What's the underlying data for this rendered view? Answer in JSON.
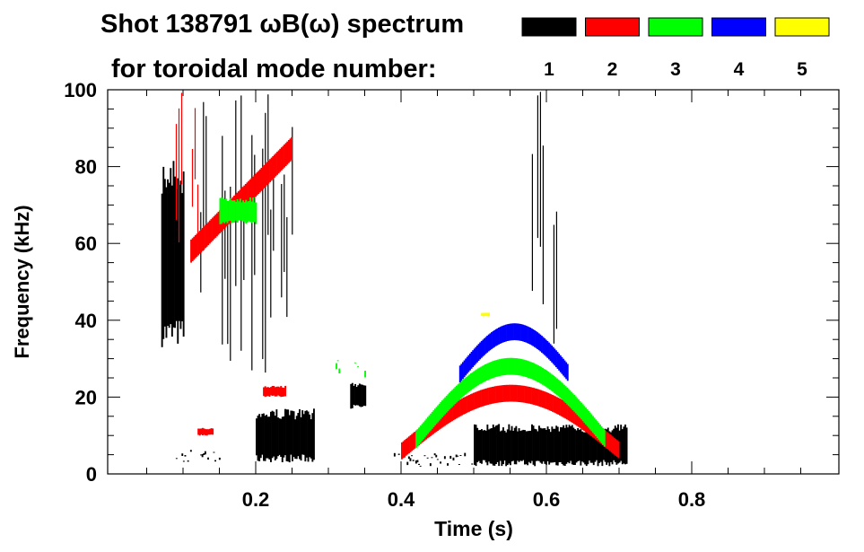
{
  "chart_data": {
    "type": "heatmap",
    "title": "Shot 138791 ωB(ω) spectrum",
    "subtitle": "for toroidal mode number:",
    "xlabel": "Time (s)",
    "ylabel": "Frequency (kHz)",
    "xlim": [
      0,
      1.0
    ],
    "ylim": [
      0,
      100
    ],
    "xticks": [
      0.2,
      0.4,
      0.6,
      0.8
    ],
    "xtick_labels": [
      "0.2",
      "0.4",
      "0.6",
      "0.8"
    ],
    "yticks": [
      0,
      20,
      40,
      60,
      80,
      100
    ],
    "ytick_labels": [
      "0",
      "20",
      "40",
      "60",
      "80",
      "100"
    ],
    "legend_placement": "top-right",
    "legend": [
      {
        "label": "1",
        "color": "#000000"
      },
      {
        "label": "2",
        "color": "#ff0000"
      },
      {
        "label": "3",
        "color": "#00ff00"
      },
      {
        "label": "4",
        "color": "#0000ff"
      },
      {
        "label": "5",
        "color": "#ffff00"
      }
    ],
    "series": [
      {
        "name": "1",
        "color": "#000000",
        "patches": [
          {
            "t": [
              0.07,
              0.1
            ],
            "f": [
              33,
              82
            ],
            "style": "blob"
          },
          {
            "t": [
              0.09,
              0.15
            ],
            "f": [
              3,
              6
            ],
            "style": "scatter"
          },
          {
            "t": [
              0.12,
              0.25
            ],
            "f": [
              25,
              100
            ],
            "style": "streaks"
          },
          {
            "t": [
              0.2,
              0.28
            ],
            "f": [
              3,
              17
            ],
            "style": "blob"
          },
          {
            "t": [
              0.33,
              0.35
            ],
            "f": [
              17,
              24
            ],
            "style": "blob"
          },
          {
            "t": [
              0.39,
              0.5
            ],
            "f": [
              2,
              5
            ],
            "style": "scatter"
          },
          {
            "t": [
              0.5,
              0.71
            ],
            "f": [
              2,
              13
            ],
            "style": "blob"
          },
          {
            "t": [
              0.58,
              0.62
            ],
            "f": [
              30,
              100
            ],
            "style": "streaks"
          }
        ]
      },
      {
        "name": "2",
        "color": "#ff0000",
        "patches": [
          {
            "t": [
              0.09,
              0.12
            ],
            "f": [
              60,
              100
            ],
            "style": "streaks"
          },
          {
            "t": [
              0.11,
              0.25
            ],
            "f": [
              58,
              85
            ],
            "style": "rising"
          },
          {
            "t": [
              0.21,
              0.24
            ],
            "f": [
              20,
              23
            ],
            "style": "blob"
          },
          {
            "t": [
              0.12,
              0.14
            ],
            "f": [
              10,
              12
            ],
            "style": "blob"
          },
          {
            "t": [
              0.4,
              0.7
            ],
            "f": [
              6,
              21
            ],
            "style": "arch"
          }
        ]
      },
      {
        "name": "3",
        "color": "#00ff00",
        "patches": [
          {
            "t": [
              0.15,
              0.2
            ],
            "f": [
              65,
              72
            ],
            "style": "blob"
          },
          {
            "t": [
              0.31,
              0.35
            ],
            "f": [
              24,
              30
            ],
            "style": "scatter"
          },
          {
            "t": [
              0.42,
              0.68
            ],
            "f": [
              9,
              28
            ],
            "style": "arch"
          }
        ]
      },
      {
        "name": "4",
        "color": "#0000ff",
        "patches": [
          {
            "t": [
              0.48,
              0.63
            ],
            "f": [
              26,
              37
            ],
            "style": "arch"
          }
        ]
      },
      {
        "name": "5",
        "color": "#ffff00",
        "patches": [
          {
            "t": [
              0.51,
              0.52
            ],
            "f": [
              41,
              42
            ],
            "style": "blob"
          }
        ]
      }
    ]
  }
}
